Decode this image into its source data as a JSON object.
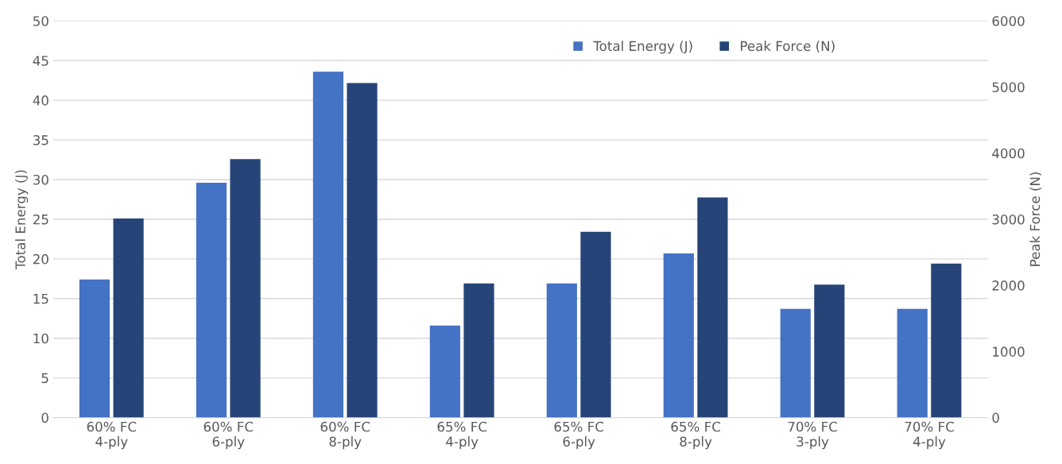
{
  "chart_data": {
    "type": "bar",
    "ylabel": "Total Energy (J)",
    "y2label": "Peak Force (N)",
    "categories": [
      "60% FC\n4-ply",
      "60% FC\n6-ply",
      "60% FC\n8-ply",
      "65% FC\n4-ply",
      "65% FC\n6-ply",
      "65% FC\n8-ply",
      "70% FC\n3-ply",
      "70% FC\n4-ply"
    ],
    "series": [
      {
        "name": "Total Energy (J)",
        "color": "#4472c4",
        "values": [
          17.4,
          29.6,
          43.6,
          11.6,
          16.9,
          20.7,
          13.7,
          13.7
        ]
      },
      {
        "name": "Peak Force (N)",
        "color": "#264478",
        "axis": "y2",
        "values": [
          3010,
          3910,
          5060,
          2030,
          2810,
          3330,
          2010,
          2330
        ]
      }
    ],
    "ylim": [
      0,
      50
    ],
    "yticks": [
      0,
      5,
      10,
      15,
      20,
      25,
      30,
      35,
      40,
      45,
      50
    ],
    "y2lim": [
      0,
      6000
    ],
    "y2ticks": [
      0,
      1000,
      2000,
      3000,
      4000,
      5000,
      6000
    ],
    "grid": "y",
    "legend": "top right"
  }
}
